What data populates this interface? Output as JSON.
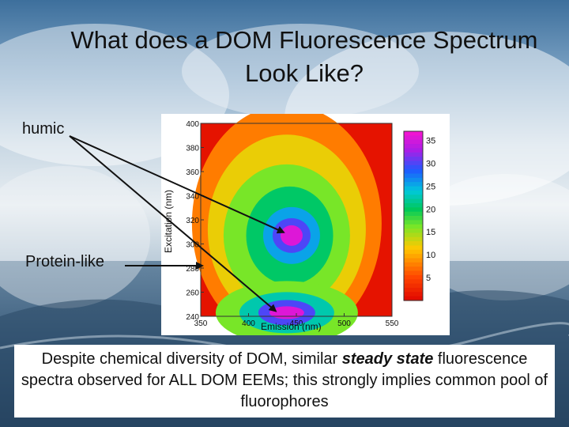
{
  "slide": {
    "title": "What does a DOM Fluorescence Spectrum Look Like?",
    "labels": {
      "humic": "humic",
      "protein": "Protein-like"
    },
    "caption": {
      "before": "Despite chemical diversity of DOM, similar ",
      "emphasis": "steady state",
      "after": " fluorescence spectra observed for ALL DOM EEMs; this strongly implies common pool of fluorophores"
    }
  },
  "chart_data": {
    "type": "heatmap",
    "xlabel": "Emission (nm)",
    "ylabel": "Excitation (nm)",
    "xlim": [
      350,
      550
    ],
    "ylim": [
      240,
      400
    ],
    "x_ticks": [
      "350",
      "400",
      "450",
      "500",
      "550"
    ],
    "y_ticks": [
      "240",
      "260",
      "280",
      "300",
      "320",
      "340",
      "360",
      "380",
      "400"
    ],
    "colorbar": {
      "range": [
        0,
        37
      ],
      "ticks": [
        "5",
        "10",
        "15",
        "20",
        "25",
        "30",
        "35"
      ]
    },
    "peaks": [
      {
        "name": "humic",
        "emission": 445,
        "excitation": 307,
        "intensity": 36
      },
      {
        "name": "protein-like",
        "emission": 440,
        "excitation": 243,
        "intensity": 36
      }
    ]
  }
}
